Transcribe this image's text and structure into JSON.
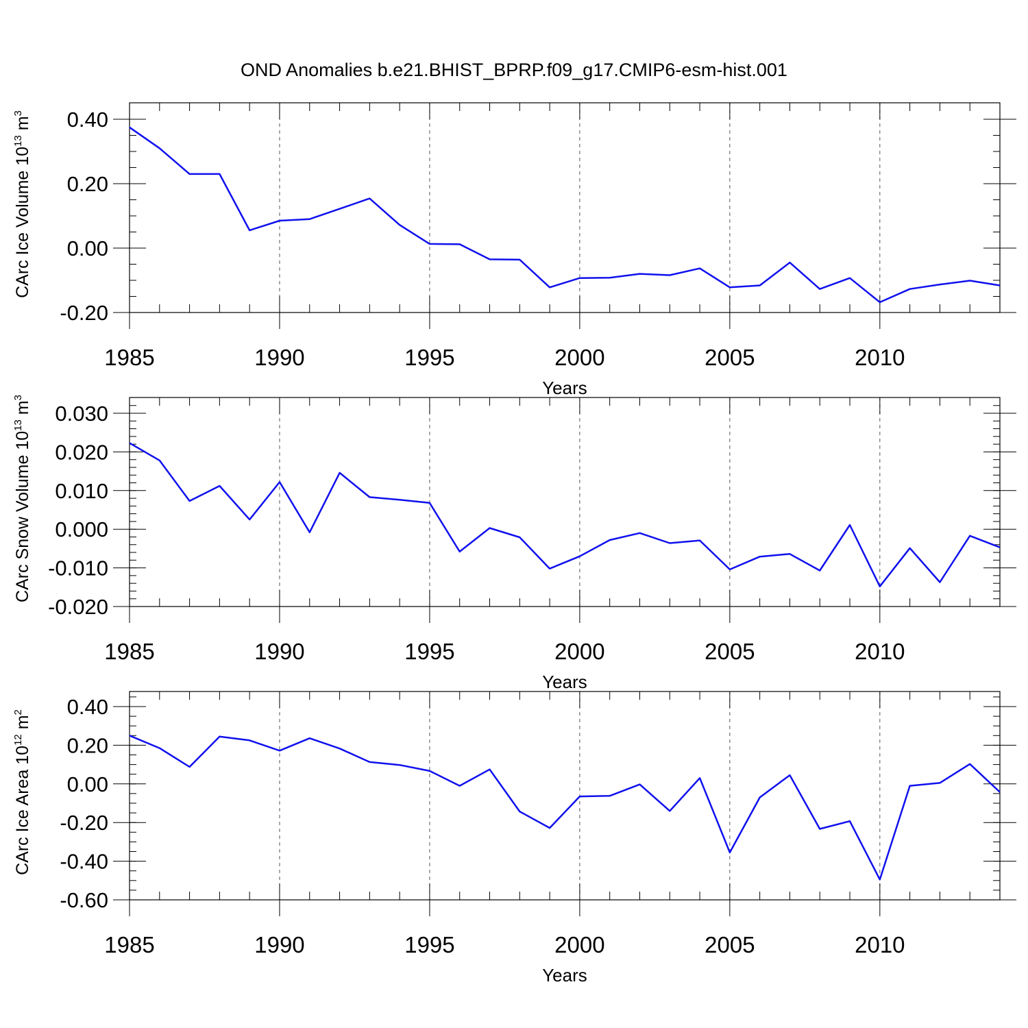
{
  "page_title": "OND Anomalies b.e21.BHIST_BPRP.f09_g17.CMIP6-esm-hist.001",
  "colors": {
    "series": "#1010ee",
    "frame": "#000000",
    "grid": "#555555"
  },
  "chart_data": [
    {
      "type": "line",
      "title": "",
      "xlabel": "Years",
      "ylabel": {
        "text": "CArc Ice Volume 10",
        "sup1": "13",
        "mid": " m",
        "sup2": "3"
      },
      "xlim": [
        1985,
        2014
      ],
      "ylim": [
        -0.2,
        0.45
      ],
      "grid": "vertical dashed",
      "x_ticks": [
        "1985",
        "1990",
        "1995",
        "2000",
        "2005",
        "2010"
      ],
      "y_ticks": [
        {
          "value": 0.4,
          "label": "0.40"
        },
        {
          "value": 0.2,
          "label": "0.20"
        },
        {
          "value": 0.0,
          "label": "0.00"
        },
        {
          "value": -0.2,
          "label": "-0.20"
        }
      ],
      "y_minor_step": 0.05,
      "x": [
        1985,
        1986,
        1987,
        1988,
        1989,
        1990,
        1991,
        1992,
        1993,
        1994,
        1995,
        1996,
        1997,
        1998,
        1999,
        2000,
        2001,
        2002,
        2003,
        2004,
        2005,
        2006,
        2007,
        2008,
        2009,
        2010,
        2011,
        2012,
        2013,
        2014
      ],
      "values": [
        0.375,
        0.31,
        0.23,
        0.23,
        0.055,
        0.085,
        0.09,
        0.122,
        0.154,
        0.072,
        0.013,
        0.012,
        -0.035,
        -0.036,
        -0.122,
        -0.093,
        -0.092,
        -0.08,
        -0.084,
        -0.063,
        -0.122,
        -0.116,
        -0.045,
        -0.127,
        -0.093,
        -0.168,
        -0.127,
        -0.113,
        -0.101,
        -0.116
      ]
    },
    {
      "type": "line",
      "title": "",
      "xlabel": "Years",
      "ylabel": {
        "text": "CArc Snow Volume 10",
        "sup1": "13",
        "mid": " m",
        "sup2": "3"
      },
      "xlim": [
        1985,
        2014
      ],
      "ylim": [
        -0.02,
        0.03
      ],
      "grid": "vertical dashed",
      "x_ticks": [
        "1985",
        "1990",
        "1995",
        "2000",
        "2005",
        "2010"
      ],
      "y_ticks": [
        {
          "value": 0.03,
          "label": "0.030"
        },
        {
          "value": 0.02,
          "label": "0.020"
        },
        {
          "value": 0.01,
          "label": "0.010"
        },
        {
          "value": 0.0,
          "label": "0.000"
        },
        {
          "value": -0.01,
          "label": "-0.010"
        },
        {
          "value": -0.02,
          "label": "-0.020"
        }
      ],
      "y_minor_step": 0.002,
      "x": [
        1985,
        1986,
        1987,
        1988,
        1989,
        1990,
        1991,
        1992,
        1993,
        1994,
        1995,
        1996,
        1997,
        1998,
        1999,
        2000,
        2001,
        2002,
        2003,
        2004,
        2005,
        2006,
        2007,
        2008,
        2009,
        2010,
        2011,
        2012,
        2013,
        2014
      ],
      "values": [
        0.0223,
        0.0178,
        0.0073,
        0.0112,
        0.0025,
        0.0122,
        -0.0008,
        0.0146,
        0.0083,
        0.0076,
        0.0068,
        -0.0058,
        0.0003,
        -0.0021,
        -0.0102,
        -0.007,
        -0.0028,
        -0.001,
        -0.0036,
        -0.0029,
        -0.0104,
        -0.0071,
        -0.0064,
        -0.0107,
        0.0011,
        -0.0148,
        -0.0049,
        -0.0137,
        -0.0017,
        -0.0047
      ]
    },
    {
      "type": "line",
      "title": "",
      "xlabel": "Years",
      "ylabel": {
        "text": "CArc Ice Area 10",
        "sup1": "12",
        "mid": " m",
        "sup2": "2"
      },
      "xlim": [
        1985,
        2014
      ],
      "ylim": [
        -0.6,
        0.5
      ],
      "grid": "vertical dashed",
      "x_ticks": [
        "1985",
        "1990",
        "1995",
        "2000",
        "2005",
        "2010"
      ],
      "y_ticks": [
        {
          "value": 0.4,
          "label": "0.40"
        },
        {
          "value": 0.2,
          "label": "0.20"
        },
        {
          "value": 0.0,
          "label": "0.00"
        },
        {
          "value": -0.2,
          "label": "-0.20"
        },
        {
          "value": -0.4,
          "label": "-0.40"
        },
        {
          "value": -0.6,
          "label": "-0.60"
        }
      ],
      "y_minor_step": 0.05,
      "x": [
        1985,
        1986,
        1987,
        1988,
        1989,
        1990,
        1991,
        1992,
        1993,
        1994,
        1995,
        1996,
        1997,
        1998,
        1999,
        2000,
        2001,
        2002,
        2003,
        2004,
        2005,
        2006,
        2007,
        2008,
        2009,
        2010,
        2011,
        2012,
        2013,
        2014
      ],
      "values": [
        0.25,
        0.185,
        0.088,
        0.245,
        0.225,
        0.172,
        0.236,
        0.183,
        0.113,
        0.098,
        0.067,
        -0.01,
        0.075,
        -0.143,
        -0.228,
        -0.065,
        -0.062,
        -0.003,
        -0.14,
        0.03,
        -0.355,
        -0.07,
        0.045,
        -0.233,
        -0.193,
        -0.495,
        -0.01,
        0.005,
        0.103,
        -0.043
      ]
    }
  ]
}
